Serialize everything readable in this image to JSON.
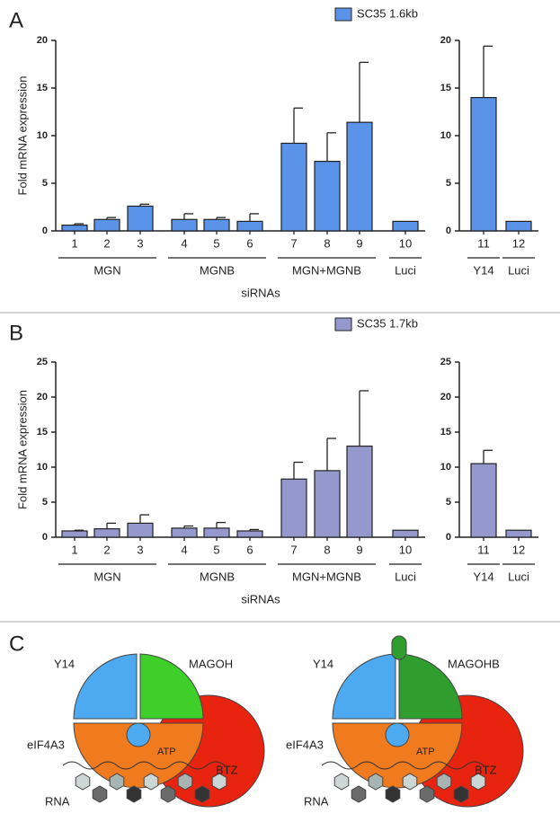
{
  "chart_data": [
    {
      "type": "bar",
      "ylabel": "Fold mRNA expression",
      "xlabel": "siRNAs",
      "legend": "SC35 1.6kb",
      "color": "#5b93e8",
      "categories": [
        "1",
        "2",
        "3",
        "4",
        "5",
        "6",
        "7",
        "8",
        "9",
        "10"
      ],
      "values": [
        0.6,
        1.2,
        2.6,
        1.2,
        1.2,
        1.0,
        9.2,
        7.3,
        11.4,
        1.0
      ],
      "errors": [
        0.15,
        0.2,
        0.2,
        0.6,
        0.2,
        0.8,
        3.7,
        3.0,
        6.3,
        0
      ],
      "groups": [
        {
          "label": "MGN",
          "members": [
            "1",
            "2",
            "3"
          ]
        },
        {
          "label": "MGNB",
          "members": [
            "4",
            "5",
            "6"
          ]
        },
        {
          "label": "MGN+MGNB",
          "members": [
            "7",
            "8",
            "9"
          ]
        },
        {
          "label": "Luci",
          "members": [
            "10"
          ]
        }
      ],
      "ylim": [
        0,
        20
      ],
      "yticks": [
        0,
        5,
        10,
        15,
        20
      ]
    },
    {
      "type": "bar",
      "color": "#5b93e8",
      "categories": [
        "11",
        "12"
      ],
      "values": [
        14.0,
        1.0
      ],
      "errors": [
        5.4,
        0
      ],
      "groups": [
        {
          "label": "Y14",
          "members": [
            "11"
          ]
        },
        {
          "label": "Luci",
          "members": [
            "12"
          ]
        }
      ],
      "ylim": [
        0,
        20
      ],
      "yticks": [
        0,
        5,
        10,
        15,
        20
      ]
    },
    {
      "type": "bar",
      "ylabel": "Fold mRNA expression",
      "xlabel": "siRNAs",
      "legend": "SC35 1.7kb",
      "color": "#9598cc",
      "categories": [
        "1",
        "2",
        "3",
        "4",
        "5",
        "6",
        "7",
        "8",
        "9",
        "10"
      ],
      "values": [
        0.9,
        1.2,
        2.0,
        1.3,
        1.3,
        0.9,
        8.3,
        9.5,
        13.0,
        1.0
      ],
      "errors": [
        0.1,
        0.8,
        1.2,
        0.3,
        0.8,
        0.2,
        2.4,
        4.6,
        7.9,
        0
      ],
      "groups": [
        {
          "label": "MGN",
          "members": [
            "1",
            "2",
            "3"
          ]
        },
        {
          "label": "MGNB",
          "members": [
            "4",
            "5",
            "6"
          ]
        },
        {
          "label": "MGN+MGNB",
          "members": [
            "7",
            "8",
            "9"
          ]
        },
        {
          "label": "Luci",
          "members": [
            "10"
          ]
        }
      ],
      "ylim": [
        0,
        25
      ],
      "yticks": [
        0,
        5,
        10,
        15,
        20,
        25
      ]
    },
    {
      "type": "bar",
      "color": "#9598cc",
      "categories": [
        "11",
        "12"
      ],
      "values": [
        10.5,
        1.0
      ],
      "errors": [
        1.9,
        0
      ],
      "groups": [
        {
          "label": "Y14",
          "members": [
            "11"
          ]
        },
        {
          "label": "Luci",
          "members": [
            "12"
          ]
        }
      ],
      "ylim": [
        0,
        25
      ],
      "yticks": [
        0,
        5,
        10,
        15,
        20,
        25
      ]
    }
  ],
  "panel_labels": [
    "A",
    "B",
    "C"
  ],
  "diagram": [
    {
      "y14": "Y14",
      "magoh": "MAGOH",
      "eif4a3": "eIF4A3",
      "atp": "ATP",
      "btz": "BTZ",
      "rna": "RNA"
    },
    {
      "y14": "Y14",
      "magoh": "MAGOHB",
      "eif4a3": "eIF4A3",
      "atp": "ATP",
      "btz": "BTZ",
      "rna": "RNA"
    }
  ]
}
